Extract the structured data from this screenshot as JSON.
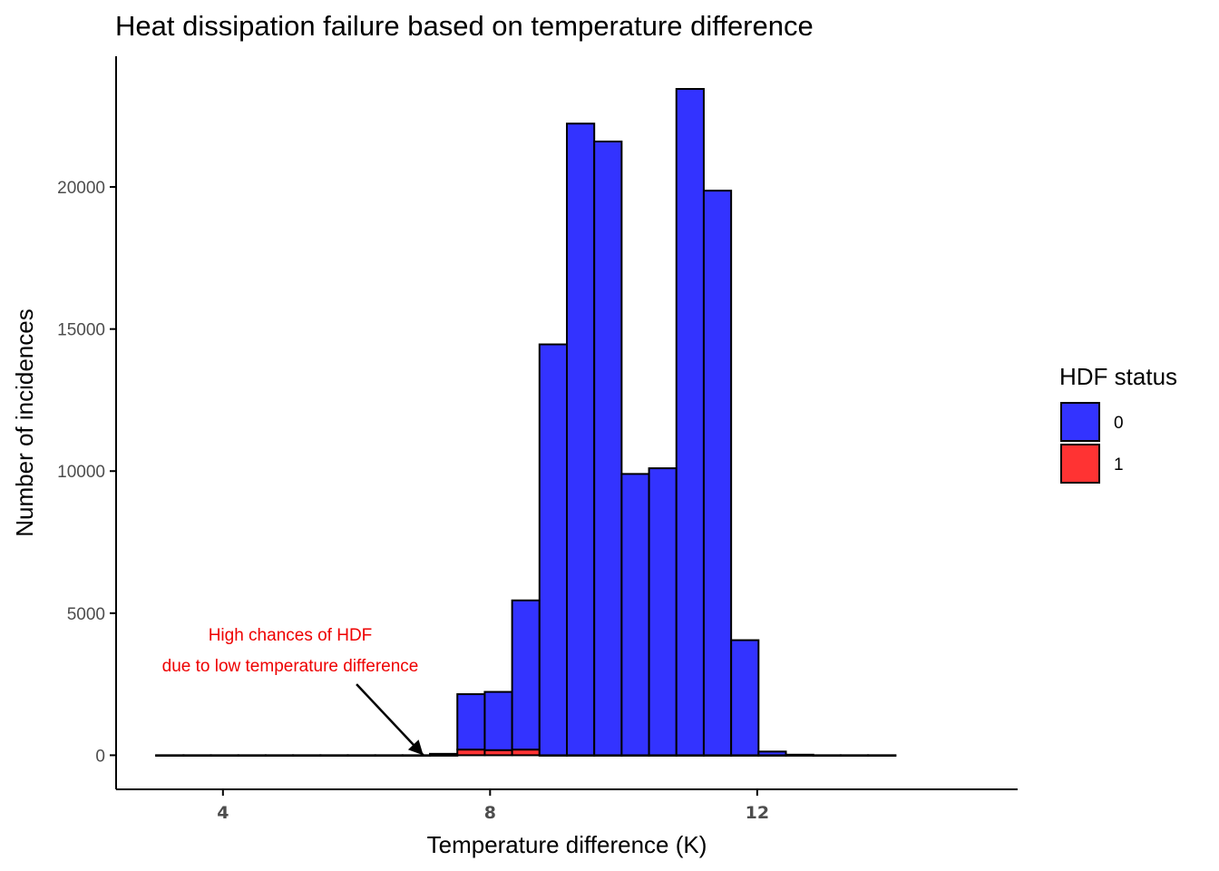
{
  "chart_data": {
    "type": "bar",
    "title": "Heat dissipation failure based on temperature difference",
    "xlabel": "Temperature difference (K)",
    "ylabel": "Number of incidences",
    "xlim": [
      2.4,
      15.9
    ],
    "ylim": [
      -1200,
      24600
    ],
    "x_ticks": [
      4,
      8,
      12
    ],
    "y_ticks": [
      0,
      5000,
      10000,
      15000,
      20000
    ],
    "grid": false,
    "legend": {
      "title": "HDF status",
      "position": "right",
      "entries": [
        {
          "label": "0",
          "color": "#3333ff"
        },
        {
          "label": "1",
          "color": "#ff3333"
        }
      ]
    },
    "bin_width": 0.41,
    "bin_start": 3.0,
    "bin_count": 27,
    "series": [
      {
        "name": "0",
        "color": "#3333ff",
        "values": [
          0,
          0,
          0,
          0,
          0,
          0,
          0,
          0,
          0,
          0,
          50,
          1950,
          2050,
          5250,
          14460,
          22230,
          21600,
          9900,
          10100,
          23450,
          19870,
          4050,
          130,
          20,
          0,
          0,
          0
        ]
      },
      {
        "name": "1",
        "color": "#ff3333",
        "values": [
          0,
          0,
          0,
          0,
          0,
          0,
          0,
          0,
          0,
          0,
          0,
          200,
          180,
          200,
          0,
          0,
          0,
          0,
          0,
          0,
          0,
          0,
          0,
          0,
          0,
          0,
          0
        ]
      }
    ],
    "annotations": [
      {
        "lines": [
          "High chances of HDF",
          "due to low temperature difference"
        ],
        "text_x": 7.0,
        "text_y": 3650,
        "arrow_from": [
          6.0,
          2500
        ],
        "arrow_to": [
          7.0,
          0
        ],
        "color": "#ee0000"
      }
    ]
  }
}
